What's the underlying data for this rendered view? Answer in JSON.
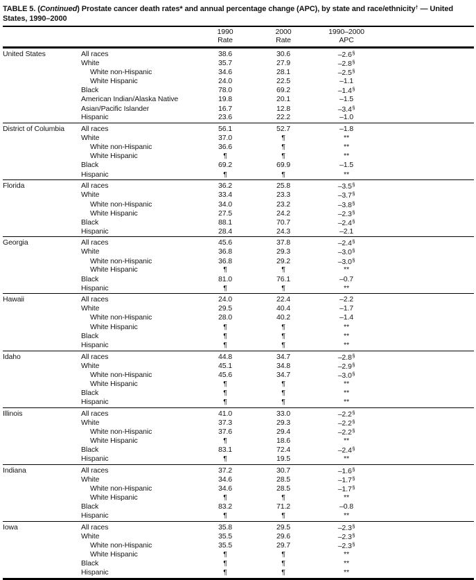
{
  "title": {
    "part1": "TABLE 5. (",
    "continued": "Continued",
    "part2": ") Prostate cancer death rates* and annual percentage change (APC), by state and race/ethnicity",
    "dagger": "†",
    "part3": " — United States, 1990–2000"
  },
  "table": {
    "columns": [
      {
        "line1": "1990",
        "line2": "Rate"
      },
      {
        "line1": "2000",
        "line2": "Rate"
      },
      {
        "line1": "1990–2000",
        "line2": "APC"
      }
    ],
    "symbols": {
      "suppressed_rate": "¶",
      "suppressed_apc": "**",
      "statistically_significant": "§"
    },
    "sections": [
      {
        "state": "United States",
        "rows": [
          {
            "race": "All races",
            "indent": false,
            "r90": "38.6",
            "r00": "30.6",
            "apc": "–2.6",
            "sup": "§"
          },
          {
            "race": "White",
            "indent": false,
            "r90": "35.7",
            "r00": "27.9",
            "apc": "–2.8",
            "sup": "§"
          },
          {
            "race": "White non-Hispanic",
            "indent": true,
            "r90": "34.6",
            "r00": "28.1",
            "apc": "–2.5",
            "sup": "§"
          },
          {
            "race": "White Hispanic",
            "indent": true,
            "r90": "24.0",
            "r00": "22.5",
            "apc": "–1.1",
            "sup": ""
          },
          {
            "race": "Black",
            "indent": false,
            "r90": "78.0",
            "r00": "69.2",
            "apc": "–1.4",
            "sup": "§"
          },
          {
            "race": "American Indian/Alaska Native",
            "indent": false,
            "r90": "19.8",
            "r00": "20.1",
            "apc": "–1.5",
            "sup": ""
          },
          {
            "race": "Asian/Pacific Islander",
            "indent": false,
            "r90": "16.7",
            "r00": "12.8",
            "apc": "–3.4",
            "sup": "§"
          },
          {
            "race": "Hispanic",
            "indent": false,
            "r90": "23.6",
            "r00": "22.2",
            "apc": "–1.0",
            "sup": ""
          }
        ]
      },
      {
        "state": "District of Columbia",
        "rows": [
          {
            "race": "All races",
            "indent": false,
            "r90": "56.1",
            "r00": "52.7",
            "apc": "–1.8",
            "sup": ""
          },
          {
            "race": "White",
            "indent": false,
            "r90": "37.0",
            "r00": "¶",
            "apc": "**",
            "sup": ""
          },
          {
            "race": "White non-Hispanic",
            "indent": true,
            "r90": "36.6",
            "r00": "¶",
            "apc": "**",
            "sup": ""
          },
          {
            "race": "White Hispanic",
            "indent": true,
            "r90": "¶",
            "r00": "¶",
            "apc": "**",
            "sup": ""
          },
          {
            "race": "Black",
            "indent": false,
            "r90": "69.2",
            "r00": "69.9",
            "apc": "–1.5",
            "sup": ""
          },
          {
            "race": "Hispanic",
            "indent": false,
            "r90": "¶",
            "r00": "¶",
            "apc": "**",
            "sup": ""
          }
        ]
      },
      {
        "state": "Florida",
        "rows": [
          {
            "race": "All races",
            "indent": false,
            "r90": "36.2",
            "r00": "25.8",
            "apc": "–3.5",
            "sup": "§"
          },
          {
            "race": "White",
            "indent": false,
            "r90": "33.4",
            "r00": "23.3",
            "apc": "–3.7",
            "sup": "§"
          },
          {
            "race": "White non-Hispanic",
            "indent": true,
            "r90": "34.0",
            "r00": "23.2",
            "apc": "–3.8",
            "sup": "§"
          },
          {
            "race": "White Hispanic",
            "indent": true,
            "r90": "27.5",
            "r00": "24.2",
            "apc": "–2.3",
            "sup": "§"
          },
          {
            "race": "Black",
            "indent": false,
            "r90": "88.1",
            "r00": "70.7",
            "apc": "–2.4",
            "sup": "§"
          },
          {
            "race": "Hispanic",
            "indent": false,
            "r90": "28.4",
            "r00": "24.3",
            "apc": "–2.1",
            "sup": ""
          }
        ]
      },
      {
        "state": "Georgia",
        "rows": [
          {
            "race": "All races",
            "indent": false,
            "r90": "45.6",
            "r00": "37.8",
            "apc": "–2.4",
            "sup": "§"
          },
          {
            "race": "White",
            "indent": false,
            "r90": "36.8",
            "r00": "29.3",
            "apc": "–3.0",
            "sup": "§"
          },
          {
            "race": "White non-Hispanic",
            "indent": true,
            "r90": "36.8",
            "r00": "29.2",
            "apc": "–3.0",
            "sup": "§"
          },
          {
            "race": "White Hispanic",
            "indent": true,
            "r90": "¶",
            "r00": "¶",
            "apc": "**",
            "sup": ""
          },
          {
            "race": "Black",
            "indent": false,
            "r90": "81.0",
            "r00": "76.1",
            "apc": "–0.7",
            "sup": ""
          },
          {
            "race": "Hispanic",
            "indent": false,
            "r90": "¶",
            "r00": "¶",
            "apc": "**",
            "sup": ""
          }
        ]
      },
      {
        "state": "Hawaii",
        "rows": [
          {
            "race": "All races",
            "indent": false,
            "r90": "24.0",
            "r00": "22.4",
            "apc": "–2.2",
            "sup": ""
          },
          {
            "race": "White",
            "indent": false,
            "r90": "29.5",
            "r00": "40.4",
            "apc": "–1.7",
            "sup": ""
          },
          {
            "race": "White non-Hispanic",
            "indent": true,
            "r90": "28.0",
            "r00": "40.2",
            "apc": "–1.4",
            "sup": ""
          },
          {
            "race": "White Hispanic",
            "indent": true,
            "r90": "¶",
            "r00": "¶",
            "apc": "**",
            "sup": ""
          },
          {
            "race": "Black",
            "indent": false,
            "r90": "¶",
            "r00": "¶",
            "apc": "**",
            "sup": ""
          },
          {
            "race": "Hispanic",
            "indent": false,
            "r90": "¶",
            "r00": "¶",
            "apc": "**",
            "sup": ""
          }
        ]
      },
      {
        "state": "Idaho",
        "rows": [
          {
            "race": "All races",
            "indent": false,
            "r90": "44.8",
            "r00": "34.7",
            "apc": "–2.8",
            "sup": "§"
          },
          {
            "race": "White",
            "indent": false,
            "r90": "45.1",
            "r00": "34.8",
            "apc": "–2.9",
            "sup": "§"
          },
          {
            "race": "White non-Hispanic",
            "indent": true,
            "r90": "45.6",
            "r00": "34.7",
            "apc": "–3.0",
            "sup": "§"
          },
          {
            "race": "White Hispanic",
            "indent": true,
            "r90": "¶",
            "r00": "¶",
            "apc": "**",
            "sup": ""
          },
          {
            "race": "Black",
            "indent": false,
            "r90": "¶",
            "r00": "¶",
            "apc": "**",
            "sup": ""
          },
          {
            "race": "Hispanic",
            "indent": false,
            "r90": "¶",
            "r00": "¶",
            "apc": "**",
            "sup": ""
          }
        ]
      },
      {
        "state": "Illinois",
        "rows": [
          {
            "race": "All races",
            "indent": false,
            "r90": "41.0",
            "r00": "33.0",
            "apc": "–2.2",
            "sup": "§"
          },
          {
            "race": "White",
            "indent": false,
            "r90": "37.3",
            "r00": "29.3",
            "apc": "–2.2",
            "sup": "§"
          },
          {
            "race": "White non-Hispanic",
            "indent": true,
            "r90": "37.6",
            "r00": "29.4",
            "apc": "–2.2",
            "sup": "§"
          },
          {
            "race": "White Hispanic",
            "indent": true,
            "r90": "¶",
            "r00": "18.6",
            "apc": "**",
            "sup": ""
          },
          {
            "race": "Black",
            "indent": false,
            "r90": "83.1",
            "r00": "72.4",
            "apc": "–2.4",
            "sup": "§"
          },
          {
            "race": "Hispanic",
            "indent": false,
            "r90": "¶",
            "r00": "19.5",
            "apc": "**",
            "sup": ""
          }
        ]
      },
      {
        "state": "Indiana",
        "rows": [
          {
            "race": "All races",
            "indent": false,
            "r90": "37.2",
            "r00": "30.7",
            "apc": "–1.6",
            "sup": "§"
          },
          {
            "race": "White",
            "indent": false,
            "r90": "34.6",
            "r00": "28.5",
            "apc": "–1.7",
            "sup": "§"
          },
          {
            "race": "White non-Hispanic",
            "indent": true,
            "r90": "34.6",
            "r00": "28.5",
            "apc": "–1.7",
            "sup": "§"
          },
          {
            "race": "White Hispanic",
            "indent": true,
            "r90": "¶",
            "r00": "¶",
            "apc": "**",
            "sup": ""
          },
          {
            "race": "Black",
            "indent": false,
            "r90": "83.2",
            "r00": "71.2",
            "apc": "–0.8",
            "sup": ""
          },
          {
            "race": "Hispanic",
            "indent": false,
            "r90": "¶",
            "r00": "¶",
            "apc": "**",
            "sup": ""
          }
        ]
      },
      {
        "state": "Iowa",
        "rows": [
          {
            "race": "All races",
            "indent": false,
            "r90": "35.8",
            "r00": "29.5",
            "apc": "–2.3",
            "sup": "§"
          },
          {
            "race": "White",
            "indent": false,
            "r90": "35.5",
            "r00": "29.6",
            "apc": "–2.3",
            "sup": "§"
          },
          {
            "race": "White non-Hispanic",
            "indent": true,
            "r90": "35.5",
            "r00": "29.7",
            "apc": "–2.3",
            "sup": "§"
          },
          {
            "race": "White Hispanic",
            "indent": true,
            "r90": "¶",
            "r00": "¶",
            "apc": "**",
            "sup": ""
          },
          {
            "race": "Black",
            "indent": false,
            "r90": "¶",
            "r00": "¶",
            "apc": "**",
            "sup": ""
          },
          {
            "race": "Hispanic",
            "indent": false,
            "r90": "¶",
            "r00": "¶",
            "apc": "**",
            "sup": ""
          }
        ]
      }
    ]
  }
}
